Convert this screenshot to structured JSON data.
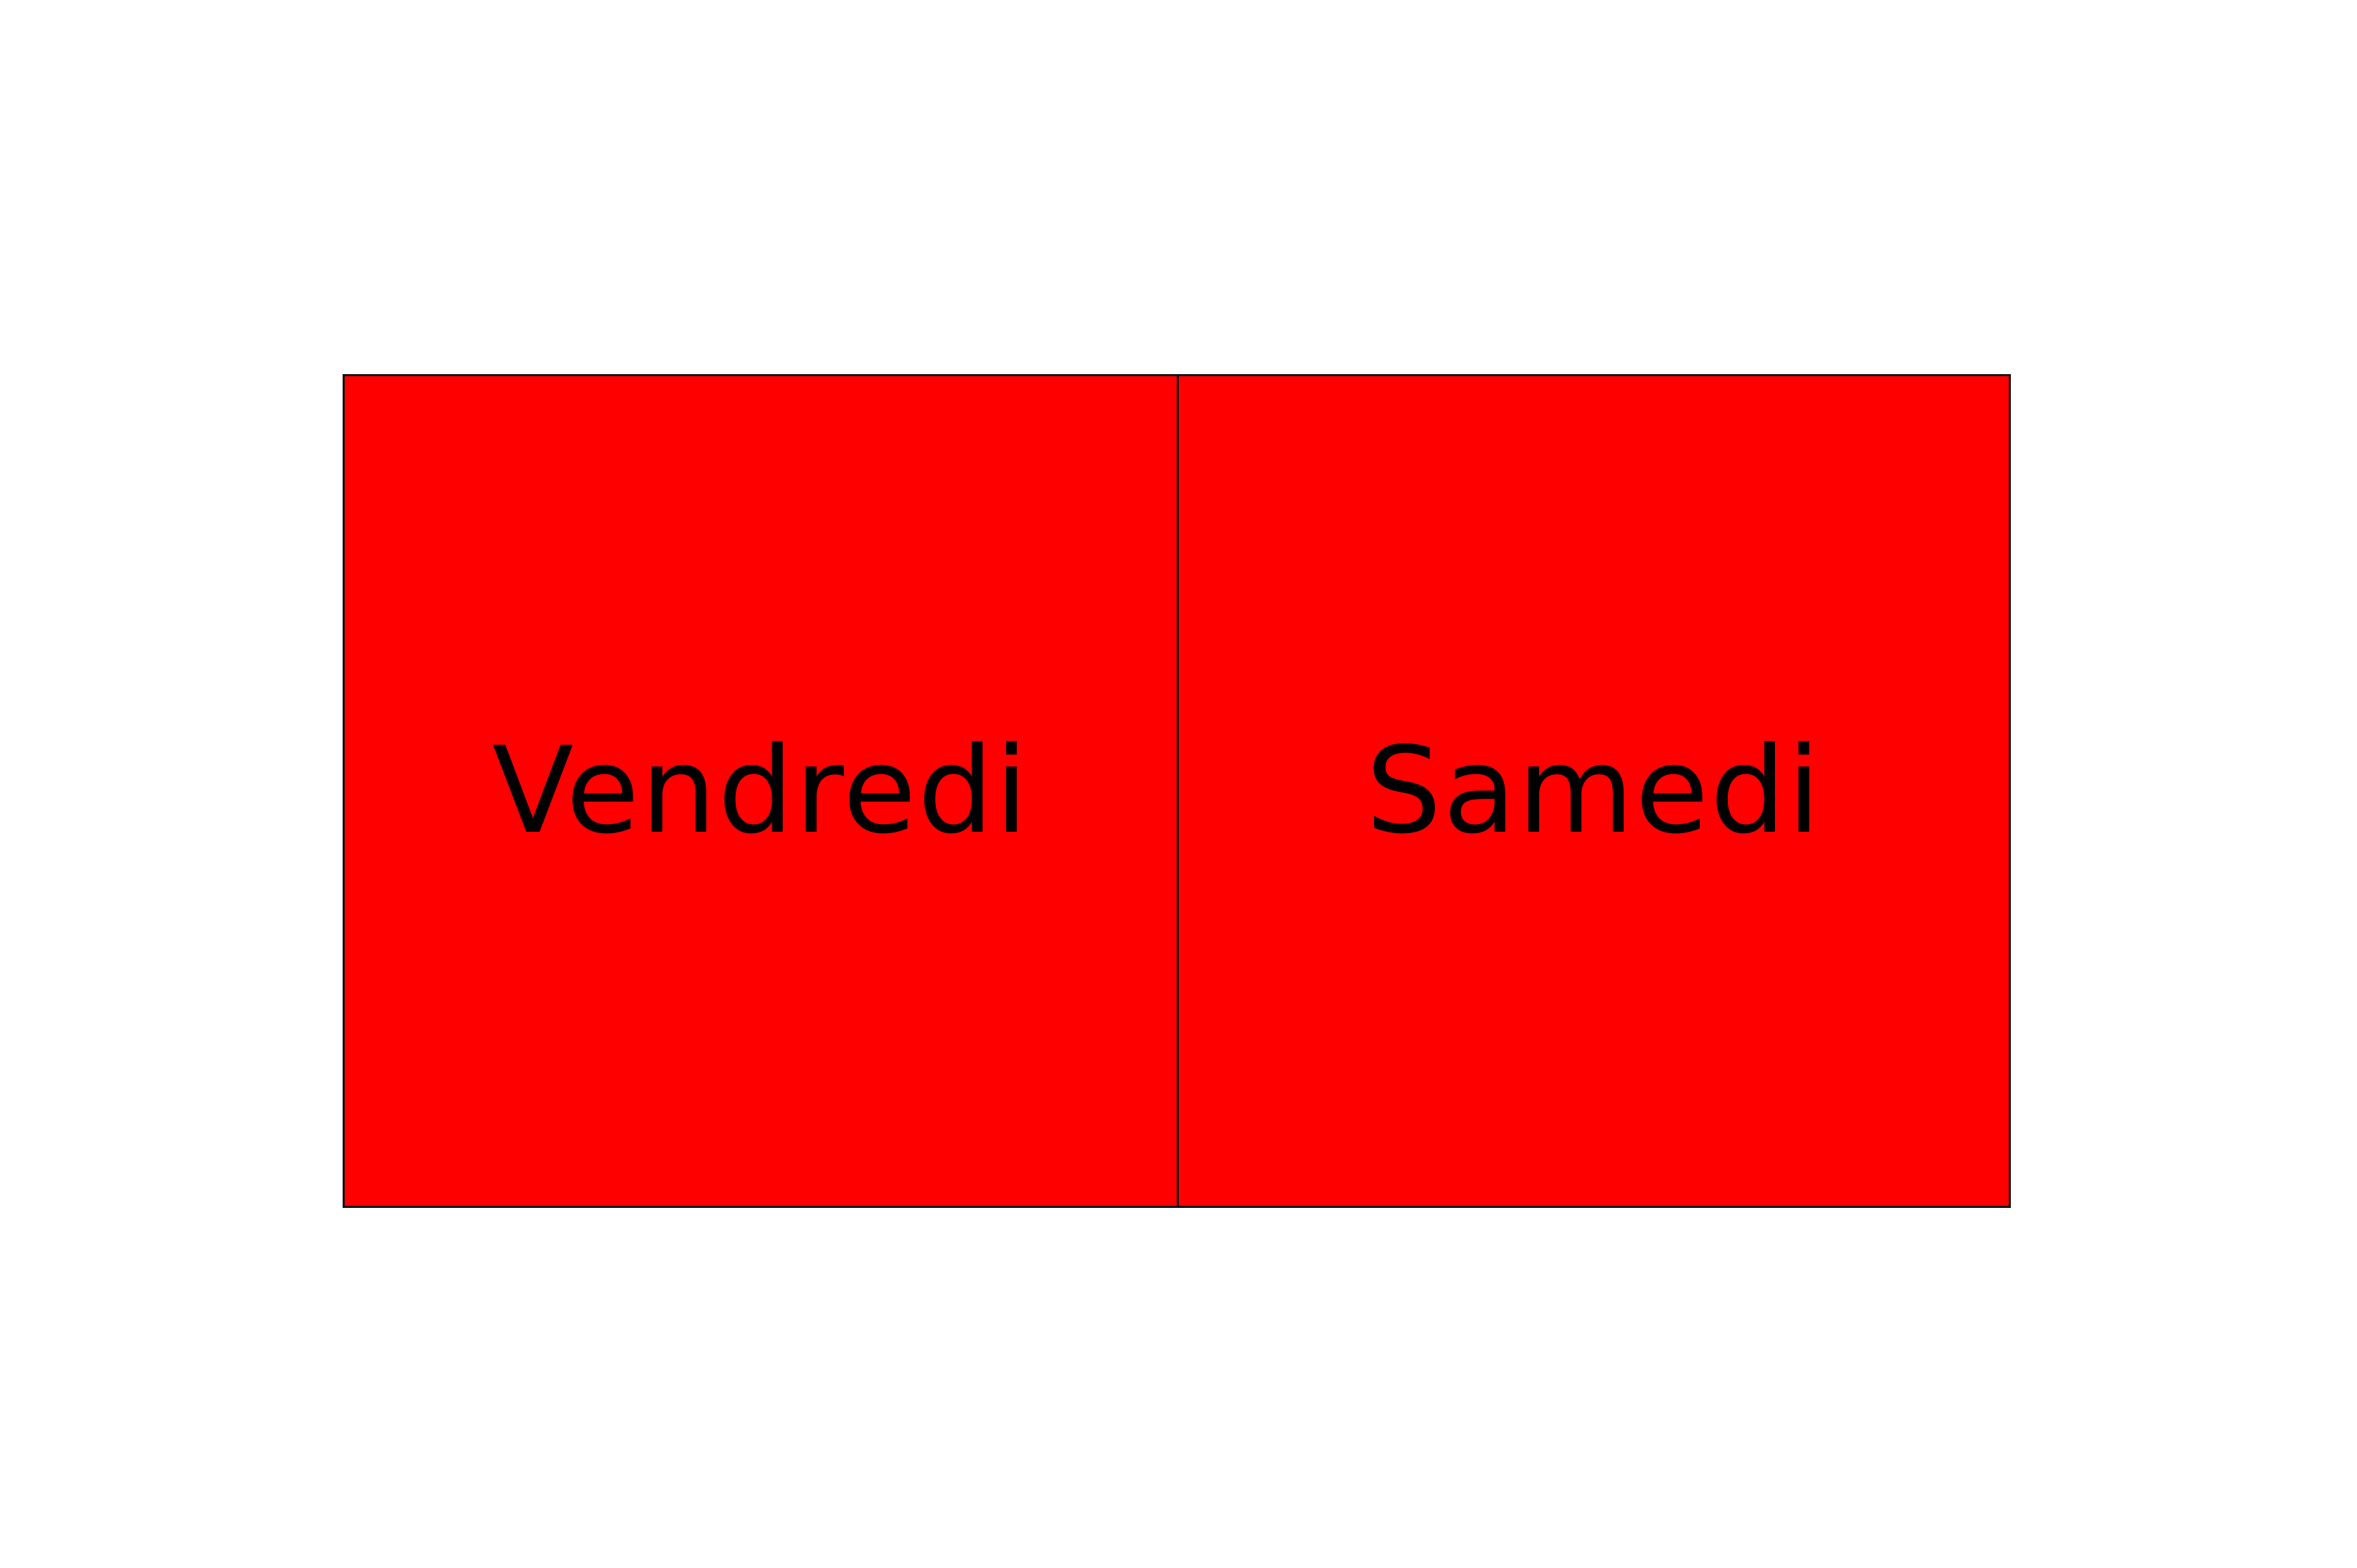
{
  "colors": {
    "card_fill": "#ff0000",
    "border": "#111111",
    "text": "#000000",
    "background": "#ffffff"
  },
  "cards": [
    {
      "label": "Vendredi"
    },
    {
      "label": "Samedi"
    }
  ]
}
